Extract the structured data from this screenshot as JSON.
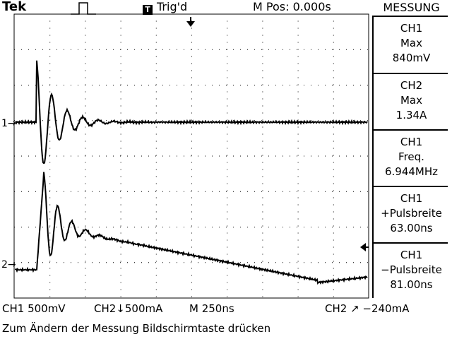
{
  "header": {
    "brand": "Tek",
    "trigger_icon": "T",
    "trigger_status": "Trig'd",
    "m_pos": "M Pos: 0.000s"
  },
  "menu": {
    "title": "MESSUNG",
    "items": [
      {
        "channel": "CH1",
        "label": "Max",
        "value": "840mV"
      },
      {
        "channel": "CH2",
        "label": "Max",
        "value": "1.34A"
      },
      {
        "channel": "CH1",
        "label": "Freq.",
        "value": "6.944MHz"
      },
      {
        "channel": "CH1",
        "label": "+Pulsbreite",
        "value": "63.00ns"
      },
      {
        "channel": "CH1",
        "label": "−Pulsbreite",
        "value": "81.00ns"
      }
    ]
  },
  "status": {
    "ch1_scale": "CH1  500mV",
    "ch2_scale": "CH2↓500mA",
    "timebase": "M 250ns",
    "trigger": "CH2 ↗ −240mA"
  },
  "hint": "Zum Ändern der Messung Bildschirmtaste drücken",
  "markers": {
    "ch1": "1→",
    "ch2": "2→"
  },
  "icons": {
    "pulse": "pulse-icon",
    "trigger_position": "trigger-position-arrow-icon",
    "trigger_level": "trigger-level-arrow-icon"
  }
}
